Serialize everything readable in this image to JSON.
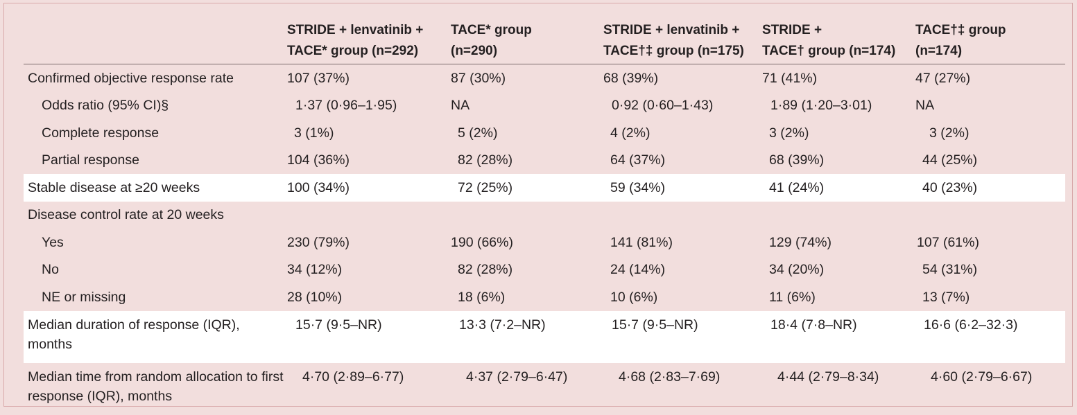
{
  "table": {
    "columns": [
      "",
      "STRIDE + lenvatinib +\nTACE* group (n=292)",
      "TACE* group\n(n=290)",
      "STRIDE + lenvatinib +\nTACE†‡ group (n=175)",
      "STRIDE +\nTACE† group (n=174)",
      "TACE†‡ group\n(n=174)"
    ],
    "rows": [
      {
        "label": "Confirmed objective response rate",
        "indent": false,
        "cells": [
          "107 (37%)",
          "87 (30%)",
          "68 (39%)",
          "71 (41%)",
          "47 (27%)"
        ]
      },
      {
        "label": "Odds ratio (95% CI)§",
        "indent": true,
        "cells": [
          "1·37 (0·96–1·95)",
          "NA",
          "0·92 (0·60–1·43)",
          "1·89 (1·20–3·01)",
          "NA"
        ]
      },
      {
        "label": "Complete response",
        "indent": true,
        "cells": [
          "3 (1%)",
          "5 (2%)",
          "4 (2%)",
          "3 (2%)",
          "3 (2%)"
        ]
      },
      {
        "label": "Partial response",
        "indent": true,
        "cells": [
          "104 (36%)",
          "82 (28%)",
          "64 (37%)",
          "68 (39%)",
          "44 (25%)"
        ]
      },
      {
        "label": "Stable disease at ≥20 weeks",
        "indent": false,
        "cells": [
          "100 (34%)",
          "72 (25%)",
          "59 (34%)",
          "41 (24%)",
          "40 (23%)"
        ]
      },
      {
        "label": "Disease control rate at 20 weeks",
        "indent": false,
        "cells": [
          "",
          "",
          "",
          "",
          ""
        ]
      },
      {
        "label": "Yes",
        "indent": true,
        "cells": [
          "230 (79%)",
          "190 (66%)",
          "141 (81%)",
          "129 (74%)",
          "107 (61%)"
        ]
      },
      {
        "label": "No",
        "indent": true,
        "cells": [
          "34 (12%)",
          "82 (28%)",
          "24 (14%)",
          "34 (20%)",
          "54 (31%)"
        ]
      },
      {
        "label": "NE or missing",
        "indent": true,
        "cells": [
          "28 (10%)",
          "18 (6%)",
          "10 (6%)",
          "11 (6%)",
          "13 (7%)"
        ]
      },
      {
        "label": "Median duration of response (IQR), months",
        "indent": false,
        "cells": [
          "15·7 (9·5–NR)",
          "13·3 (7·2–NR)",
          "15·7 (9·5–NR)",
          "18·4 (7·8–NR)",
          "16·6 (6·2–32·3)"
        ]
      },
      {
        "label": "Median time from random allocation to first response (IQR), months",
        "indent": false,
        "cells": [
          "4·70 (2·89–6·77)",
          "4·37 (2·79–6·47)",
          "4·68 (2·83–7·69)",
          "4·44 (2·79–8·34)",
          "4·60 (2·79–6·67)"
        ]
      }
    ]
  },
  "colors": {
    "background": "#f2dedd",
    "highlight_row": "#ffffff",
    "border": "#d9a9aa"
  }
}
